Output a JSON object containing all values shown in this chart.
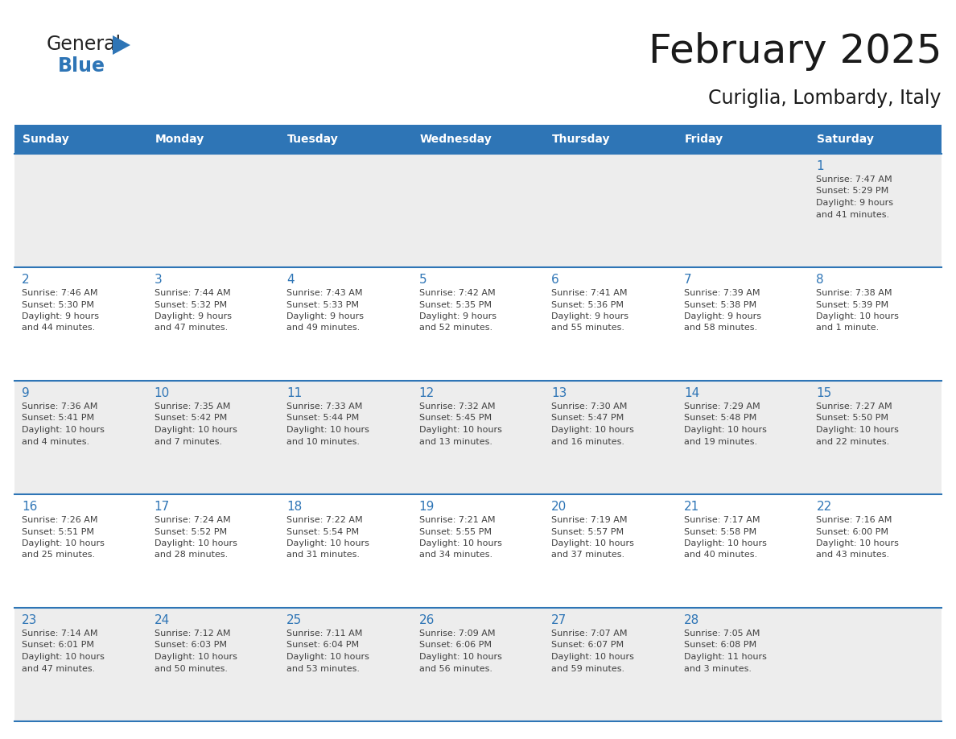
{
  "title": "February 2025",
  "subtitle": "Curiglia, Lombardy, Italy",
  "header_bg_color": "#2E75B6",
  "header_text_color": "#FFFFFF",
  "row_bg_colors": [
    "#EDEDED",
    "#FFFFFF"
  ],
  "day_headers": [
    "Sunday",
    "Monday",
    "Tuesday",
    "Wednesday",
    "Thursday",
    "Friday",
    "Saturday"
  ],
  "title_color": "#1a1a1a",
  "subtitle_color": "#1a1a1a",
  "day_number_color": "#2E75B6",
  "text_color": "#404040",
  "border_color": "#2E75B6",
  "logo_general_color": "#1a1a1a",
  "logo_blue_color": "#2E75B6",
  "weeks": [
    [
      null,
      null,
      null,
      null,
      null,
      null,
      {
        "day": 1,
        "sunrise": "7:47 AM",
        "sunset": "5:29 PM",
        "daylight": "9 hours and 41 minutes."
      }
    ],
    [
      {
        "day": 2,
        "sunrise": "7:46 AM",
        "sunset": "5:30 PM",
        "daylight": "9 hours and 44 minutes."
      },
      {
        "day": 3,
        "sunrise": "7:44 AM",
        "sunset": "5:32 PM",
        "daylight": "9 hours and 47 minutes."
      },
      {
        "day": 4,
        "sunrise": "7:43 AM",
        "sunset": "5:33 PM",
        "daylight": "9 hours and 49 minutes."
      },
      {
        "day": 5,
        "sunrise": "7:42 AM",
        "sunset": "5:35 PM",
        "daylight": "9 hours and 52 minutes."
      },
      {
        "day": 6,
        "sunrise": "7:41 AM",
        "sunset": "5:36 PM",
        "daylight": "9 hours and 55 minutes."
      },
      {
        "day": 7,
        "sunrise": "7:39 AM",
        "sunset": "5:38 PM",
        "daylight": "9 hours and 58 minutes."
      },
      {
        "day": 8,
        "sunrise": "7:38 AM",
        "sunset": "5:39 PM",
        "daylight": "10 hours and 1 minute."
      }
    ],
    [
      {
        "day": 9,
        "sunrise": "7:36 AM",
        "sunset": "5:41 PM",
        "daylight": "10 hours and 4 minutes."
      },
      {
        "day": 10,
        "sunrise": "7:35 AM",
        "sunset": "5:42 PM",
        "daylight": "10 hours and 7 minutes."
      },
      {
        "day": 11,
        "sunrise": "7:33 AM",
        "sunset": "5:44 PM",
        "daylight": "10 hours and 10 minutes."
      },
      {
        "day": 12,
        "sunrise": "7:32 AM",
        "sunset": "5:45 PM",
        "daylight": "10 hours and 13 minutes."
      },
      {
        "day": 13,
        "sunrise": "7:30 AM",
        "sunset": "5:47 PM",
        "daylight": "10 hours and 16 minutes."
      },
      {
        "day": 14,
        "sunrise": "7:29 AM",
        "sunset": "5:48 PM",
        "daylight": "10 hours and 19 minutes."
      },
      {
        "day": 15,
        "sunrise": "7:27 AM",
        "sunset": "5:50 PM",
        "daylight": "10 hours and 22 minutes."
      }
    ],
    [
      {
        "day": 16,
        "sunrise": "7:26 AM",
        "sunset": "5:51 PM",
        "daylight": "10 hours and 25 minutes."
      },
      {
        "day": 17,
        "sunrise": "7:24 AM",
        "sunset": "5:52 PM",
        "daylight": "10 hours and 28 minutes."
      },
      {
        "day": 18,
        "sunrise": "7:22 AM",
        "sunset": "5:54 PM",
        "daylight": "10 hours and 31 minutes."
      },
      {
        "day": 19,
        "sunrise": "7:21 AM",
        "sunset": "5:55 PM",
        "daylight": "10 hours and 34 minutes."
      },
      {
        "day": 20,
        "sunrise": "7:19 AM",
        "sunset": "5:57 PM",
        "daylight": "10 hours and 37 minutes."
      },
      {
        "day": 21,
        "sunrise": "7:17 AM",
        "sunset": "5:58 PM",
        "daylight": "10 hours and 40 minutes."
      },
      {
        "day": 22,
        "sunrise": "7:16 AM",
        "sunset": "6:00 PM",
        "daylight": "10 hours and 43 minutes."
      }
    ],
    [
      {
        "day": 23,
        "sunrise": "7:14 AM",
        "sunset": "6:01 PM",
        "daylight": "10 hours and 47 minutes."
      },
      {
        "day": 24,
        "sunrise": "7:12 AM",
        "sunset": "6:03 PM",
        "daylight": "10 hours and 50 minutes."
      },
      {
        "day": 25,
        "sunrise": "7:11 AM",
        "sunset": "6:04 PM",
        "daylight": "10 hours and 53 minutes."
      },
      {
        "day": 26,
        "sunrise": "7:09 AM",
        "sunset": "6:06 PM",
        "daylight": "10 hours and 56 minutes."
      },
      {
        "day": 27,
        "sunrise": "7:07 AM",
        "sunset": "6:07 PM",
        "daylight": "10 hours and 59 minutes."
      },
      {
        "day": 28,
        "sunrise": "7:05 AM",
        "sunset": "6:08 PM",
        "daylight": "11 hours and 3 minutes."
      },
      null
    ]
  ]
}
